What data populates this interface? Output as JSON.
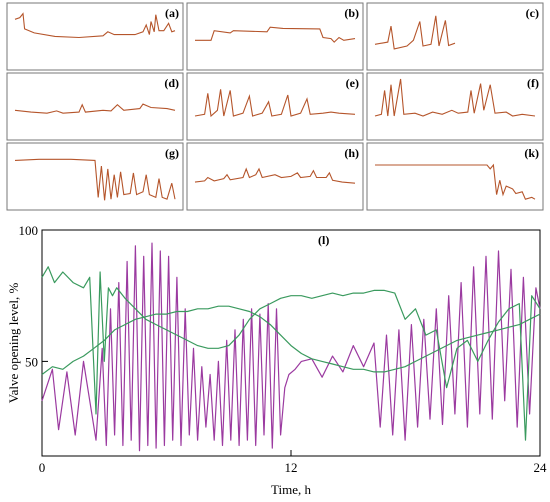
{
  "colors": {
    "small": "#b5552b",
    "purple": "#9b3aa0",
    "green": "#3a9a5e",
    "axis": "#000000",
    "frame": "#777777"
  },
  "small_panels": [
    {
      "label": "(a)",
      "points": [
        [
          0,
          0.82
        ],
        [
          0.03,
          0.85
        ],
        [
          0.05,
          0.92
        ],
        [
          0.06,
          0.65
        ],
        [
          0.12,
          0.58
        ],
        [
          0.25,
          0.52
        ],
        [
          0.4,
          0.5
        ],
        [
          0.55,
          0.53
        ],
        [
          0.58,
          0.6
        ],
        [
          0.62,
          0.55
        ],
        [
          0.75,
          0.55
        ],
        [
          0.8,
          0.6
        ],
        [
          0.82,
          0.72
        ],
        [
          0.84,
          0.55
        ],
        [
          0.85,
          0.78
        ],
        [
          0.87,
          0.6
        ],
        [
          0.88,
          0.9
        ],
        [
          0.9,
          0.62
        ],
        [
          0.93,
          0.62
        ],
        [
          0.96,
          0.75
        ],
        [
          0.98,
          0.6
        ],
        [
          1,
          0.62
        ]
      ]
    },
    {
      "label": "(b)",
      "points": [
        [
          0,
          0.45
        ],
        [
          0.1,
          0.45
        ],
        [
          0.12,
          0.62
        ],
        [
          0.22,
          0.58
        ],
        [
          0.24,
          0.62
        ],
        [
          0.45,
          0.6
        ],
        [
          0.47,
          0.68
        ],
        [
          0.55,
          0.66
        ],
        [
          0.78,
          0.65
        ],
        [
          0.8,
          0.5
        ],
        [
          0.85,
          0.48
        ],
        [
          0.87,
          0.42
        ],
        [
          0.9,
          0.5
        ],
        [
          0.93,
          0.45
        ],
        [
          1,
          0.48
        ]
      ]
    },
    {
      "label": "(c)",
      "points": [
        [
          0,
          0.38
        ],
        [
          0.08,
          0.42
        ],
        [
          0.1,
          0.7
        ],
        [
          0.12,
          0.3
        ],
        [
          0.2,
          0.35
        ],
        [
          0.24,
          0.45
        ],
        [
          0.28,
          0.78
        ],
        [
          0.3,
          0.35
        ],
        [
          0.35,
          0.38
        ],
        [
          0.38,
          0.88
        ],
        [
          0.4,
          0.35
        ],
        [
          0.44,
          0.8
        ],
        [
          0.46,
          0.36
        ],
        [
          0.5,
          0.4
        ]
      ]
    },
    {
      "label": "(d)",
      "points": [
        [
          0,
          0.45
        ],
        [
          0.1,
          0.42
        ],
        [
          0.2,
          0.4
        ],
        [
          0.26,
          0.44
        ],
        [
          0.3,
          0.4
        ],
        [
          0.4,
          0.42
        ],
        [
          0.42,
          0.55
        ],
        [
          0.44,
          0.42
        ],
        [
          0.55,
          0.45
        ],
        [
          0.6,
          0.44
        ],
        [
          0.64,
          0.55
        ],
        [
          0.68,
          0.45
        ],
        [
          0.78,
          0.48
        ],
        [
          0.8,
          0.56
        ],
        [
          0.85,
          0.5
        ],
        [
          0.95,
          0.48
        ],
        [
          1,
          0.45
        ]
      ]
    },
    {
      "label": "(e)",
      "points": [
        [
          0,
          0.35
        ],
        [
          0.06,
          0.38
        ],
        [
          0.08,
          0.75
        ],
        [
          0.1,
          0.35
        ],
        [
          0.14,
          0.45
        ],
        [
          0.16,
          0.82
        ],
        [
          0.18,
          0.35
        ],
        [
          0.22,
          0.8
        ],
        [
          0.24,
          0.35
        ],
        [
          0.3,
          0.4
        ],
        [
          0.34,
          0.7
        ],
        [
          0.36,
          0.35
        ],
        [
          0.42,
          0.4
        ],
        [
          0.46,
          0.6
        ],
        [
          0.48,
          0.35
        ],
        [
          0.54,
          0.38
        ],
        [
          0.58,
          0.72
        ],
        [
          0.6,
          0.35
        ],
        [
          0.66,
          0.4
        ],
        [
          0.7,
          0.65
        ],
        [
          0.72,
          0.38
        ],
        [
          0.8,
          0.4
        ],
        [
          0.85,
          0.42
        ],
        [
          0.9,
          0.4
        ],
        [
          1,
          0.38
        ]
      ]
    },
    {
      "label": "(f)",
      "points": [
        [
          0,
          0.35
        ],
        [
          0.04,
          0.38
        ],
        [
          0.06,
          0.8
        ],
        [
          0.08,
          0.35
        ],
        [
          0.1,
          0.9
        ],
        [
          0.12,
          0.35
        ],
        [
          0.16,
          1.0
        ],
        [
          0.18,
          0.38
        ],
        [
          0.25,
          0.4
        ],
        [
          0.3,
          0.35
        ],
        [
          0.36,
          0.42
        ],
        [
          0.42,
          0.38
        ],
        [
          0.48,
          0.45
        ],
        [
          0.52,
          0.4
        ],
        [
          0.58,
          0.42
        ],
        [
          0.6,
          0.8
        ],
        [
          0.62,
          0.4
        ],
        [
          0.66,
          0.92
        ],
        [
          0.68,
          0.45
        ],
        [
          0.72,
          0.9
        ],
        [
          0.75,
          0.4
        ],
        [
          0.82,
          0.42
        ],
        [
          0.86,
          0.35
        ],
        [
          0.92,
          0.38
        ],
        [
          1,
          0.35
        ]
      ]
    },
    {
      "label": "(g)",
      "points": [
        [
          0,
          0.8
        ],
        [
          0.15,
          0.82
        ],
        [
          0.35,
          0.82
        ],
        [
          0.5,
          0.8
        ],
        [
          0.52,
          0.15
        ],
        [
          0.54,
          0.7
        ],
        [
          0.56,
          0.1
        ],
        [
          0.58,
          0.65
        ],
        [
          0.6,
          0.12
        ],
        [
          0.62,
          0.55
        ],
        [
          0.64,
          0.15
        ],
        [
          0.66,
          0.6
        ],
        [
          0.68,
          0.2
        ],
        [
          0.72,
          0.22
        ],
        [
          0.74,
          0.58
        ],
        [
          0.76,
          0.2
        ],
        [
          0.8,
          0.25
        ],
        [
          0.82,
          0.55
        ],
        [
          0.84,
          0.2
        ],
        [
          0.88,
          0.15
        ],
        [
          0.9,
          0.48
        ],
        [
          0.92,
          0.15
        ],
        [
          0.95,
          0.12
        ],
        [
          0.98,
          0.4
        ],
        [
          1,
          0.12
        ]
      ]
    },
    {
      "label": "(h)",
      "points": [
        [
          0,
          0.42
        ],
        [
          0.06,
          0.44
        ],
        [
          0.08,
          0.5
        ],
        [
          0.12,
          0.44
        ],
        [
          0.18,
          0.48
        ],
        [
          0.2,
          0.55
        ],
        [
          0.22,
          0.46
        ],
        [
          0.3,
          0.5
        ],
        [
          0.32,
          0.65
        ],
        [
          0.34,
          0.5
        ],
        [
          0.38,
          0.55
        ],
        [
          0.4,
          0.65
        ],
        [
          0.42,
          0.5
        ],
        [
          0.5,
          0.55
        ],
        [
          0.54,
          0.5
        ],
        [
          0.6,
          0.52
        ],
        [
          0.64,
          0.58
        ],
        [
          0.66,
          0.5
        ],
        [
          0.72,
          0.52
        ],
        [
          0.74,
          0.62
        ],
        [
          0.76,
          0.5
        ],
        [
          0.82,
          0.5
        ],
        [
          0.84,
          0.58
        ],
        [
          0.86,
          0.45
        ],
        [
          0.92,
          0.42
        ],
        [
          1,
          0.4
        ]
      ]
    },
    {
      "label": "(k)",
      "points": [
        [
          0,
          0.72
        ],
        [
          0.2,
          0.72
        ],
        [
          0.5,
          0.72
        ],
        [
          0.7,
          0.72
        ],
        [
          0.72,
          0.65
        ],
        [
          0.74,
          0.72
        ],
        [
          0.76,
          0.2
        ],
        [
          0.78,
          0.45
        ],
        [
          0.8,
          0.2
        ],
        [
          0.82,
          0.35
        ],
        [
          0.86,
          0.3
        ],
        [
          0.88,
          0.22
        ],
        [
          0.92,
          0.25
        ],
        [
          0.94,
          0.12
        ],
        [
          0.98,
          0.15
        ],
        [
          1,
          0.12
        ]
      ]
    }
  ],
  "chart_data": {
    "type": "line",
    "title": "(l)",
    "xlabel": "Time, h",
    "ylabel": "Valve opening level, %",
    "xlim": [
      0,
      24
    ],
    "ylim": [
      14,
      100
    ],
    "xticks": [
      0,
      12,
      24
    ],
    "yticks": [
      50,
      100
    ],
    "series": [
      {
        "color": "#9b3aa0",
        "x": [
          0,
          0.5,
          0.8,
          1.2,
          1.6,
          2,
          2.6,
          2.9,
          3.1,
          3.3,
          3.5,
          3.7,
          3.9,
          4.1,
          4.3,
          4.5,
          4.7,
          4.9,
          5.1,
          5.3,
          5.5,
          5.7,
          5.9,
          6.1,
          6.3,
          6.5,
          6.7,
          6.9,
          7.1,
          7.3,
          7.5,
          7.7,
          7.9,
          8.1,
          8.3,
          8.5,
          8.7,
          8.9,
          9.1,
          9.3,
          9.5,
          9.7,
          9.9,
          10.1,
          10.3,
          10.5,
          10.7,
          10.9,
          11.1,
          11.3,
          11.5,
          11.7,
          11.9,
          12.2,
          12.5,
          13,
          13.5,
          14,
          14.5,
          15,
          15.5,
          16,
          16.3,
          16.6,
          16.9,
          17.2,
          17.5,
          17.8,
          18.1,
          18.4,
          18.7,
          19,
          19.3,
          19.6,
          19.9,
          20.2,
          20.5,
          20.8,
          21.1,
          21.4,
          21.7,
          22,
          22.3,
          22.6,
          22.9,
          23.2,
          23.5,
          23.8,
          24
        ],
        "y": [
          35,
          47,
          24,
          46,
          22,
          50,
          20,
          55,
          18,
          70,
          22,
          80,
          18,
          88,
          20,
          94,
          16,
          90,
          18,
          95,
          17,
          92,
          18,
          90,
          20,
          82,
          18,
          70,
          22,
          55,
          20,
          48,
          25,
          45,
          20,
          50,
          18,
          58,
          20,
          62,
          18,
          66,
          20,
          70,
          18,
          68,
          22,
          72,
          17,
          70,
          22,
          40,
          45,
          47,
          50,
          51,
          44,
          52,
          46,
          56,
          48,
          57,
          25,
          60,
          22,
          62,
          20,
          64,
          25,
          66,
          28,
          70,
          26,
          75,
          30,
          80,
          25,
          86,
          30,
          90,
          28,
          92,
          35,
          85,
          25,
          82,
          30,
          78,
          70
        ]
      },
      {
        "color": "#3a9a5e",
        "x": [
          0,
          0.3,
          0.6,
          1,
          1.5,
          2,
          2.3,
          2.6,
          2.8,
          3,
          3.2,
          3.4,
          3.6,
          4,
          4.5,
          5,
          5.5,
          6,
          6.5,
          7,
          7.5,
          8,
          8.5,
          9,
          9.5,
          10,
          10.5,
          11,
          11.5,
          12,
          12.5,
          13,
          13.5,
          14,
          14.5,
          15,
          15.5,
          16,
          16.5,
          17,
          17.5,
          18,
          18.5,
          19,
          19.5,
          20,
          20.5,
          21,
          21.5,
          22,
          22.5,
          23,
          23.3,
          23.6,
          24
        ],
        "y": [
          82,
          86,
          80,
          84,
          80,
          78,
          82,
          30,
          84,
          50,
          78,
          75,
          78,
          74,
          70,
          66,
          64,
          62,
          60,
          58,
          56,
          55,
          55,
          56,
          60,
          66,
          70,
          72,
          74,
          75,
          75,
          74,
          75,
          76,
          75,
          76,
          76,
          77,
          77,
          76,
          66,
          70,
          60,
          62,
          40,
          55,
          58,
          50,
          58,
          65,
          70,
          72,
          20,
          75,
          70
        ]
      },
      {
        "color": "#3a9a5e",
        "x": [
          0,
          0.5,
          1,
          1.5,
          2,
          2.5,
          3,
          3.5,
          4,
          4.5,
          5,
          5.5,
          6,
          6.5,
          7,
          7.5,
          8,
          8.5,
          9,
          9.5,
          10,
          10.5,
          11,
          11.5,
          12,
          12.5,
          13,
          13.5,
          14,
          14.5,
          15,
          15.5,
          16,
          16.5,
          17,
          17.5,
          18,
          18.5,
          19,
          19.5,
          20,
          20.5,
          21,
          21.5,
          22,
          22.5,
          23,
          23.5,
          24
        ],
        "y": [
          45,
          48,
          47,
          50,
          52,
          55,
          58,
          62,
          64,
          66,
          67,
          68,
          68,
          69,
          69,
          70,
          70,
          71,
          71,
          70,
          69,
          67,
          64,
          60,
          56,
          53,
          51,
          50,
          49,
          48,
          47,
          47,
          46,
          46,
          47,
          48,
          50,
          52,
          54,
          56,
          58,
          59,
          60,
          61,
          62,
          63,
          64,
          66,
          68
        ]
      }
    ]
  }
}
